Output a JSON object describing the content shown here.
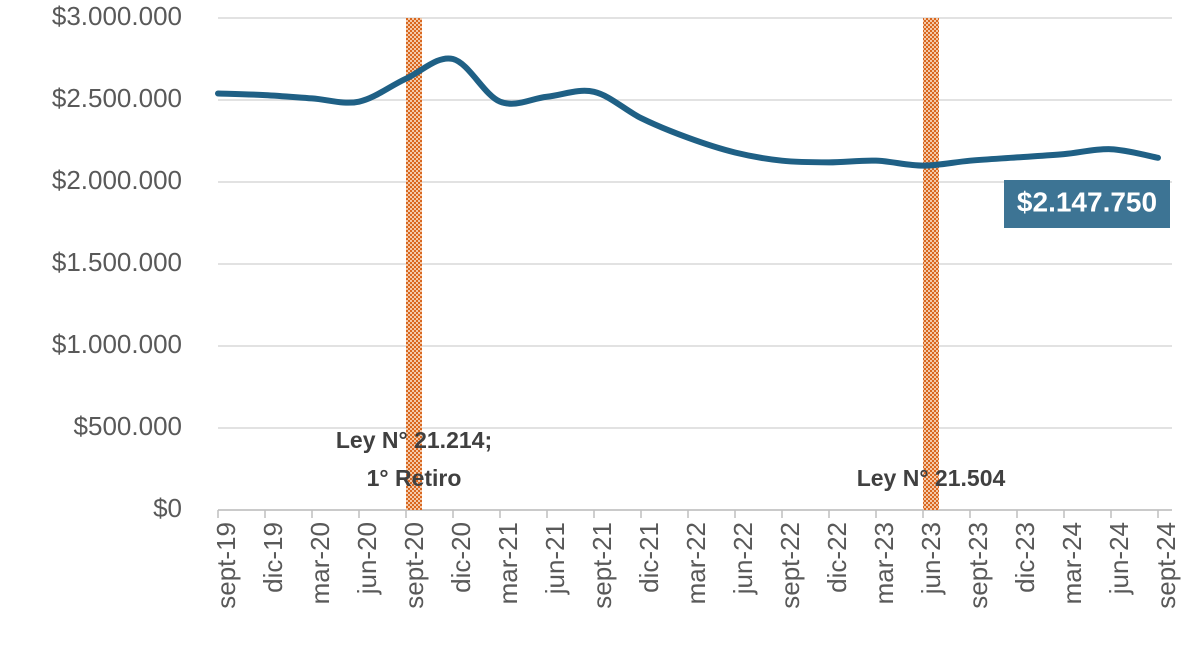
{
  "chart_data": {
    "type": "line",
    "categories": [
      "sept-19",
      "dic-19",
      "mar-20",
      "jun-20",
      "sept-20",
      "dic-20",
      "mar-21",
      "jun-21",
      "sept-21",
      "dic-21",
      "mar-22",
      "jun-22",
      "sept-22",
      "dic-22",
      "mar-23",
      "jun-23",
      "sept-23",
      "dic-23",
      "mar-24",
      "jun-24",
      "sept-24"
    ],
    "series": [
      {
        "color": "#1f6085",
        "values": [
          2540000,
          2530000,
          2510000,
          2490000,
          2630000,
          2750000,
          2490000,
          2520000,
          2550000,
          2390000,
          2270000,
          2180000,
          2130000,
          2120000,
          2130000,
          2100000,
          2130000,
          2150000,
          2170000,
          2200000,
          2147750
        ],
        "value_labels": [
          null,
          null,
          null,
          null,
          null,
          null,
          null,
          null,
          null,
          null,
          null,
          null,
          null,
          null,
          null,
          null,
          null,
          null,
          null,
          null,
          "$2.147.750"
        ]
      }
    ],
    "ylim": [
      0,
      3000000
    ],
    "yticks": [
      {
        "value": 0,
        "label": "$0"
      },
      {
        "value": 500000,
        "label": "$500.000"
      },
      {
        "value": 1000000,
        "label": "$1.000.000"
      },
      {
        "value": 1500000,
        "label": "$1.500.000"
      },
      {
        "value": 2000000,
        "label": "$2.000.000"
      },
      {
        "value": 2500000,
        "label": "$2.500.000"
      },
      {
        "value": 3000000,
        "label": "$3.000.000"
      }
    ],
    "grid": true,
    "annotations": [
      {
        "x": "sept-20",
        "text": [
          "Ley N° 21.214;",
          "1° Retiro"
        ]
      },
      {
        "x": "jun-23",
        "text": [
          "Ley N° 21.504"
        ]
      }
    ]
  }
}
